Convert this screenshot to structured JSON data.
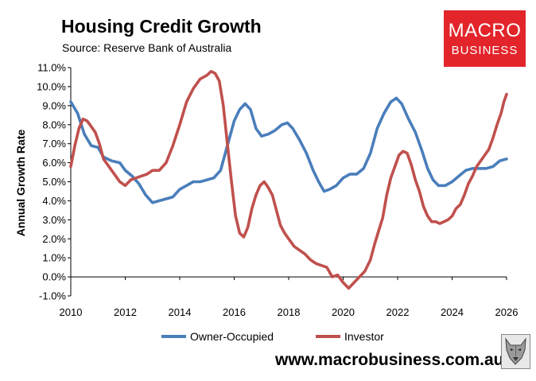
{
  "header": {
    "title": "Housing Credit Growth",
    "source": "Source: Reserve Bank of Australia"
  },
  "logo": {
    "line1": "MACRO",
    "line2": "BUSINESS",
    "background": "#e3242b"
  },
  "footer": {
    "url": "www.macrobusiness.com.au",
    "wolf_icon": "wolf-icon"
  },
  "chart_data": {
    "type": "line",
    "title": "Housing Credit Growth",
    "subtitle": "Source: Reserve Bank of Australia",
    "xlabel": "",
    "ylabel": "Annual Growth Rate",
    "xlim": [
      2010,
      2026
    ],
    "ylim": [
      -1.0,
      11.0
    ],
    "x_ticks": [
      "2010",
      "2012",
      "2014",
      "2016",
      "2018",
      "2020",
      "2022",
      "2024",
      "2026"
    ],
    "y_ticks": [
      "-1.0%",
      "0.0%",
      "1.0%",
      "2.0%",
      "3.0%",
      "4.0%",
      "5.0%",
      "6.0%",
      "7.0%",
      "8.0%",
      "9.0%",
      "10.0%",
      "11.0%"
    ],
    "grid": false,
    "legend": "bottom",
    "series": [
      {
        "name": "Owner-Occupied",
        "color": "#4a7ebb",
        "points": [
          [
            2010.0,
            9.2
          ],
          [
            2010.25,
            8.6
          ],
          [
            2010.5,
            7.5
          ],
          [
            2010.75,
            6.9
          ],
          [
            2011.0,
            6.8
          ],
          [
            2011.2,
            6.3
          ],
          [
            2011.5,
            6.1
          ],
          [
            2011.8,
            6.0
          ],
          [
            2012.0,
            5.6
          ],
          [
            2012.25,
            5.3
          ],
          [
            2012.5,
            4.9
          ],
          [
            2012.75,
            4.3
          ],
          [
            2013.0,
            3.9
          ],
          [
            2013.25,
            4.0
          ],
          [
            2013.5,
            4.1
          ],
          [
            2013.75,
            4.2
          ],
          [
            2014.0,
            4.6
          ],
          [
            2014.25,
            4.8
          ],
          [
            2014.5,
            5.0
          ],
          [
            2014.75,
            5.0
          ],
          [
            2015.0,
            5.1
          ],
          [
            2015.25,
            5.2
          ],
          [
            2015.5,
            5.6
          ],
          [
            2015.75,
            6.9
          ],
          [
            2016.0,
            8.2
          ],
          [
            2016.2,
            8.8
          ],
          [
            2016.4,
            9.1
          ],
          [
            2016.6,
            8.8
          ],
          [
            2016.8,
            7.8
          ],
          [
            2017.0,
            7.4
          ],
          [
            2017.25,
            7.5
          ],
          [
            2017.5,
            7.7
          ],
          [
            2017.75,
            8.0
          ],
          [
            2017.95,
            8.1
          ],
          [
            2018.15,
            7.8
          ],
          [
            2018.4,
            7.2
          ],
          [
            2018.65,
            6.5
          ],
          [
            2018.9,
            5.6
          ],
          [
            2019.1,
            5.0
          ],
          [
            2019.3,
            4.5
          ],
          [
            2019.5,
            4.6
          ],
          [
            2019.75,
            4.8
          ],
          [
            2020.0,
            5.2
          ],
          [
            2020.25,
            5.4
          ],
          [
            2020.5,
            5.4
          ],
          [
            2020.75,
            5.7
          ],
          [
            2021.0,
            6.5
          ],
          [
            2021.25,
            7.8
          ],
          [
            2021.5,
            8.6
          ],
          [
            2021.75,
            9.2
          ],
          [
            2021.95,
            9.4
          ],
          [
            2022.15,
            9.1
          ],
          [
            2022.4,
            8.3
          ],
          [
            2022.65,
            7.6
          ],
          [
            2022.9,
            6.6
          ],
          [
            2023.1,
            5.7
          ],
          [
            2023.3,
            5.1
          ],
          [
            2023.5,
            4.8
          ],
          [
            2023.75,
            4.8
          ],
          [
            2024.0,
            5.0
          ],
          [
            2024.25,
            5.3
          ],
          [
            2024.5,
            5.6
          ],
          [
            2024.75,
            5.7
          ],
          [
            2025.0,
            5.7
          ],
          [
            2025.25,
            5.7
          ],
          [
            2025.5,
            5.8
          ],
          [
            2025.75,
            6.1
          ],
          [
            2026.0,
            6.2
          ]
        ]
      },
      {
        "name": "Investor",
        "color": "#c0504d",
        "points": [
          [
            2010.0,
            5.8
          ],
          [
            2010.15,
            6.9
          ],
          [
            2010.3,
            7.8
          ],
          [
            2010.45,
            8.3
          ],
          [
            2010.6,
            8.2
          ],
          [
            2010.75,
            7.9
          ],
          [
            2010.9,
            7.6
          ],
          [
            2011.05,
            7.0
          ],
          [
            2011.2,
            6.2
          ],
          [
            2011.4,
            5.8
          ],
          [
            2011.6,
            5.4
          ],
          [
            2011.8,
            5.0
          ],
          [
            2012.0,
            4.8
          ],
          [
            2012.2,
            5.1
          ],
          [
            2012.4,
            5.2
          ],
          [
            2012.6,
            5.3
          ],
          [
            2012.8,
            5.4
          ],
          [
            2013.0,
            5.6
          ],
          [
            2013.25,
            5.6
          ],
          [
            2013.5,
            6.0
          ],
          [
            2013.75,
            6.9
          ],
          [
            2014.0,
            8.0
          ],
          [
            2014.25,
            9.2
          ],
          [
            2014.5,
            9.9
          ],
          [
            2014.75,
            10.4
          ],
          [
            2015.0,
            10.6
          ],
          [
            2015.15,
            10.8
          ],
          [
            2015.3,
            10.7
          ],
          [
            2015.45,
            10.3
          ],
          [
            2015.6,
            9.0
          ],
          [
            2015.75,
            7.0
          ],
          [
            2015.9,
            5.0
          ],
          [
            2016.05,
            3.2
          ],
          [
            2016.2,
            2.3
          ],
          [
            2016.35,
            2.1
          ],
          [
            2016.5,
            2.6
          ],
          [
            2016.65,
            3.6
          ],
          [
            2016.8,
            4.3
          ],
          [
            2016.95,
            4.8
          ],
          [
            2017.1,
            5.0
          ],
          [
            2017.25,
            4.7
          ],
          [
            2017.4,
            4.3
          ],
          [
            2017.55,
            3.5
          ],
          [
            2017.7,
            2.7
          ],
          [
            2017.85,
            2.3
          ],
          [
            2018.0,
            2.0
          ],
          [
            2018.2,
            1.6
          ],
          [
            2018.4,
            1.4
          ],
          [
            2018.6,
            1.2
          ],
          [
            2018.8,
            0.9
          ],
          [
            2019.0,
            0.7
          ],
          [
            2019.2,
            0.6
          ],
          [
            2019.4,
            0.5
          ],
          [
            2019.6,
            0.0
          ],
          [
            2019.8,
            0.1
          ],
          [
            2020.0,
            -0.3
          ],
          [
            2020.2,
            -0.6
          ],
          [
            2020.4,
            -0.3
          ],
          [
            2020.6,
            0.0
          ],
          [
            2020.8,
            0.3
          ],
          [
            2021.0,
            0.9
          ],
          [
            2021.15,
            1.7
          ],
          [
            2021.3,
            2.4
          ],
          [
            2021.45,
            3.1
          ],
          [
            2021.6,
            4.3
          ],
          [
            2021.75,
            5.2
          ],
          [
            2021.9,
            5.8
          ],
          [
            2022.05,
            6.4
          ],
          [
            2022.2,
            6.6
          ],
          [
            2022.35,
            6.5
          ],
          [
            2022.5,
            5.9
          ],
          [
            2022.65,
            5.1
          ],
          [
            2022.8,
            4.5
          ],
          [
            2022.95,
            3.7
          ],
          [
            2023.1,
            3.2
          ],
          [
            2023.25,
            2.9
          ],
          [
            2023.4,
            2.9
          ],
          [
            2023.55,
            2.8
          ],
          [
            2023.7,
            2.9
          ],
          [
            2023.85,
            3.0
          ],
          [
            2024.0,
            3.2
          ],
          [
            2024.15,
            3.6
          ],
          [
            2024.3,
            3.8
          ],
          [
            2024.45,
            4.3
          ],
          [
            2024.6,
            4.9
          ],
          [
            2024.75,
            5.3
          ],
          [
            2024.9,
            5.8
          ],
          [
            2025.05,
            6.1
          ],
          [
            2025.2,
            6.4
          ],
          [
            2025.35,
            6.7
          ],
          [
            2025.5,
            7.3
          ],
          [
            2025.65,
            8.0
          ],
          [
            2025.8,
            8.6
          ],
          [
            2025.9,
            9.2
          ],
          [
            2026.0,
            9.6
          ]
        ]
      }
    ]
  }
}
